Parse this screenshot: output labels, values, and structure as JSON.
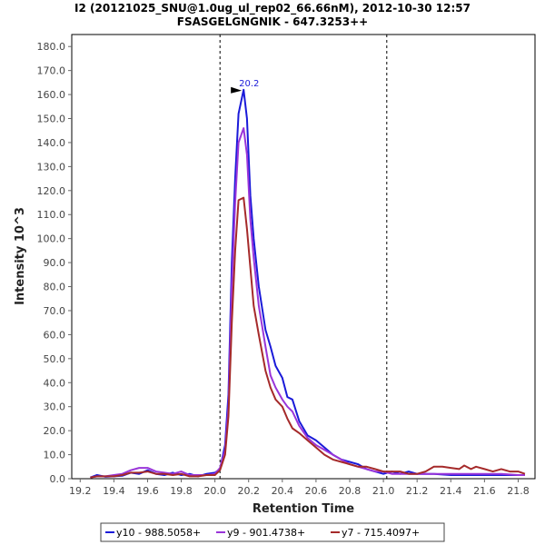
{
  "chart_data": {
    "type": "line",
    "title_line1": "I2 (20121025_SNU@1.0ug_ul_rep02_66.66nM), 2012-10-30 12:57",
    "title_line2": "FSASGELGNGNIK - 647.3253++",
    "xlabel": "Retention Time",
    "ylabel": "Intensity 10^3",
    "xlim": [
      19.15,
      21.9
    ],
    "ylim": [
      0,
      185
    ],
    "x_ticks": [
      "19.2",
      "19.4",
      "19.6",
      "19.8",
      "20.0",
      "20.2",
      "20.4",
      "20.6",
      "20.8",
      "21.0",
      "21.2",
      "21.4",
      "21.6",
      "21.8"
    ],
    "y_ticks": [
      "0.0",
      "10.0",
      "20.0",
      "30.0",
      "40.0",
      "50.0",
      "60.0",
      "70.0",
      "80.0",
      "90.0",
      "100.0",
      "110.0",
      "120.0",
      "130.0",
      "140.0",
      "150.0",
      "160.0",
      "170.0",
      "180.0"
    ],
    "boundary_lines": [
      20.03,
      21.02
    ],
    "peak_annotation": {
      "label": "20.2",
      "x": 20.17,
      "y": 162,
      "color": "#1a1ad9"
    },
    "series": [
      {
        "name": "y10 - 988.5058+",
        "color": "#1a1ad9",
        "x": [
          19.26,
          19.3,
          19.35,
          19.4,
          19.45,
          19.5,
          19.55,
          19.6,
          19.65,
          19.7,
          19.75,
          19.8,
          19.85,
          19.9,
          19.95,
          20.0,
          20.03,
          20.06,
          20.08,
          20.1,
          20.12,
          20.14,
          20.17,
          20.19,
          20.21,
          20.23,
          20.26,
          20.3,
          20.33,
          20.36,
          20.4,
          20.43,
          20.46,
          20.5,
          20.55,
          20.6,
          20.65,
          20.7,
          20.75,
          20.8,
          20.85,
          20.9,
          20.95,
          21.0,
          21.05,
          21.1,
          21.15,
          21.2,
          21.3,
          21.4,
          21.5,
          21.6,
          21.7,
          21.8,
          21.84
        ],
        "y": [
          0.5,
          1.5,
          0.8,
          1.0,
          1.2,
          2.5,
          2.0,
          3.5,
          2.0,
          1.5,
          2.5,
          1.5,
          2.0,
          1.0,
          2.0,
          2.5,
          4.0,
          14,
          35,
          90,
          125,
          152,
          162,
          150,
          118,
          100,
          80,
          62,
          55,
          47,
          42,
          34,
          33,
          24,
          18,
          16,
          13,
          10,
          8,
          7,
          6,
          4,
          3,
          2,
          3,
          2,
          3,
          2,
          2,
          1.5,
          1.5,
          1.5,
          1.5,
          1.5,
          1.5
        ]
      },
      {
        "name": "y9 - 901.4738+",
        "color": "#9a35d9",
        "x": [
          19.26,
          19.3,
          19.35,
          19.4,
          19.45,
          19.5,
          19.55,
          19.6,
          19.65,
          19.7,
          19.75,
          19.8,
          19.85,
          19.9,
          19.95,
          20.0,
          20.03,
          20.06,
          20.08,
          20.1,
          20.12,
          20.14,
          20.17,
          20.19,
          20.21,
          20.23,
          20.26,
          20.3,
          20.33,
          20.36,
          20.4,
          20.43,
          20.46,
          20.5,
          20.55,
          20.6,
          20.65,
          20.7,
          20.75,
          20.8,
          20.85,
          20.9,
          20.95,
          21.0,
          21.05,
          21.1,
          21.15,
          21.2,
          21.3,
          21.4,
          21.5,
          21.6,
          21.7,
          21.8,
          21.84
        ],
        "y": [
          0.5,
          1.0,
          1.0,
          1.5,
          2.0,
          3.5,
          4.5,
          4.5,
          3.0,
          2.5,
          2.0,
          3.0,
          1.5,
          1.5,
          1.5,
          2.0,
          4.5,
          12,
          30,
          80,
          115,
          140,
          146,
          135,
          108,
          92,
          72,
          55,
          43,
          38,
          33,
          30,
          28,
          22,
          17,
          14,
          12,
          10,
          8,
          6,
          5,
          4,
          3,
          3,
          2,
          2,
          2,
          2,
          2,
          2,
          2,
          2,
          2,
          1.5,
          1.5
        ]
      },
      {
        "name": "y7 - 715.4097+",
        "color": "#a52a2a",
        "x": [
          19.26,
          19.3,
          19.35,
          19.4,
          19.45,
          19.5,
          19.55,
          19.6,
          19.65,
          19.7,
          19.75,
          19.8,
          19.85,
          19.9,
          19.95,
          20.0,
          20.03,
          20.06,
          20.08,
          20.1,
          20.12,
          20.14,
          20.17,
          20.19,
          20.21,
          20.23,
          20.26,
          20.3,
          20.33,
          20.36,
          20.4,
          20.43,
          20.46,
          20.5,
          20.55,
          20.6,
          20.65,
          20.7,
          20.75,
          20.8,
          20.85,
          20.9,
          20.95,
          21.0,
          21.05,
          21.1,
          21.15,
          21.2,
          21.25,
          21.3,
          21.35,
          21.4,
          21.45,
          21.48,
          21.52,
          21.55,
          21.6,
          21.65,
          21.7,
          21.75,
          21.8,
          21.84
        ],
        "y": [
          0.5,
          1.0,
          1.0,
          1.0,
          1.5,
          2.5,
          2.5,
          3.0,
          2.0,
          2.0,
          1.5,
          2.0,
          1.0,
          1.0,
          1.5,
          1.5,
          3.5,
          10,
          26,
          65,
          95,
          116,
          117,
          104,
          88,
          72,
          60,
          45,
          38,
          33,
          30,
          25,
          21,
          19,
          16,
          13,
          10,
          8,
          7,
          6,
          5,
          5,
          4,
          3,
          3,
          3,
          2,
          2,
          3,
          5,
          5,
          4.5,
          4,
          5.5,
          4,
          5,
          4,
          3,
          4,
          3,
          3,
          2
        ]
      }
    ]
  }
}
